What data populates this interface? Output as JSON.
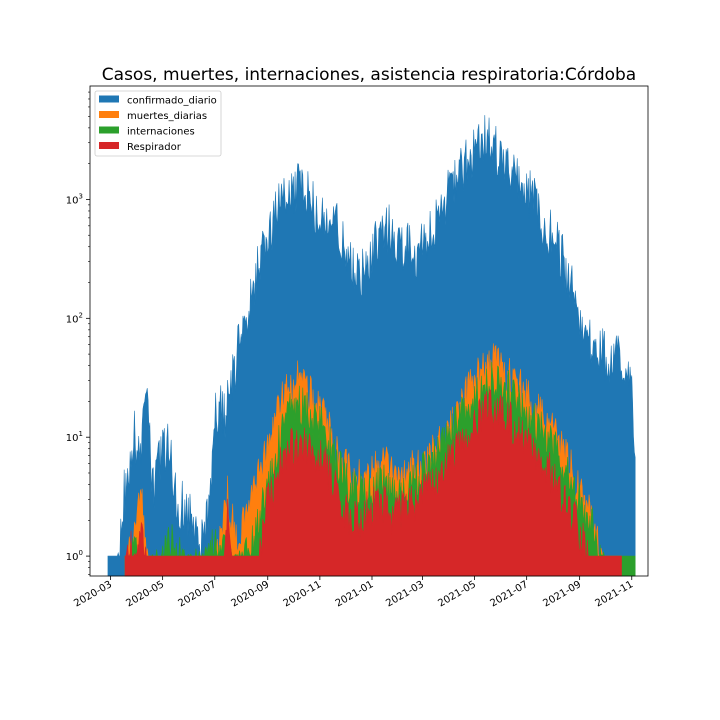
{
  "chart_data": {
    "type": "area",
    "title": "Casos, muertes, internaciones, asistencia respiratoria:Córdoba",
    "xlabel": "",
    "ylabel": "",
    "yscale": "log",
    "ylim": [
      0.68,
      9000
    ],
    "xlim": [
      "2020-02-06",
      "2021-11-20"
    ],
    "grid": false,
    "legend_position": "top-left",
    "x_ticks": [
      "2020-03",
      "2020-05",
      "2020-07",
      "2020-09",
      "2020-11",
      "2021-01",
      "2021-03",
      "2021-05",
      "2021-07",
      "2021-09",
      "2021-11"
    ],
    "y_ticks": [
      {
        "value": 1,
        "base": "10",
        "exp": "0"
      },
      {
        "value": 10,
        "base": "10",
        "exp": "1"
      },
      {
        "value": 100,
        "base": "10",
        "exp": "2"
      },
      {
        "value": 1000,
        "base": "10",
        "exp": "3"
      }
    ],
    "series": [
      {
        "name": "confirmado_diario",
        "color": "#1f77b4",
        "points": [
          [
            "2020-02-27",
            1
          ],
          [
            "2020-03-08",
            1
          ],
          [
            "2020-03-15",
            5
          ],
          [
            "2020-03-22",
            9
          ],
          [
            "2020-03-28",
            18
          ],
          [
            "2020-04-05",
            12
          ],
          [
            "2020-04-12",
            36
          ],
          [
            "2020-04-20",
            6
          ],
          [
            "2020-04-28",
            12
          ],
          [
            "2020-05-08",
            14
          ],
          [
            "2020-05-18",
            5
          ],
          [
            "2020-05-28",
            4
          ],
          [
            "2020-06-06",
            3
          ],
          [
            "2020-06-14",
            2
          ],
          [
            "2020-06-24",
            4
          ],
          [
            "2020-07-03",
            30
          ],
          [
            "2020-07-13",
            25
          ],
          [
            "2020-07-24",
            60
          ],
          [
            "2020-08-03",
            150
          ],
          [
            "2020-08-13",
            280
          ],
          [
            "2020-08-24",
            500
          ],
          [
            "2020-09-05",
            1000
          ],
          [
            "2020-09-15",
            1700
          ],
          [
            "2020-09-25",
            2000
          ],
          [
            "2020-10-05",
            2000
          ],
          [
            "2020-10-15",
            2100
          ],
          [
            "2020-10-24",
            1500
          ],
          [
            "2020-11-03",
            1300
          ],
          [
            "2020-11-12",
            1200
          ],
          [
            "2020-11-23",
            900
          ],
          [
            "2020-12-03",
            600
          ],
          [
            "2020-12-13",
            400
          ],
          [
            "2020-12-24",
            400
          ],
          [
            "2021-01-03",
            600
          ],
          [
            "2021-01-13",
            1000
          ],
          [
            "2021-01-23",
            900
          ],
          [
            "2021-02-02",
            700
          ],
          [
            "2021-02-12",
            700
          ],
          [
            "2021-02-22",
            600
          ],
          [
            "2021-03-04",
            700
          ],
          [
            "2021-03-14",
            900
          ],
          [
            "2021-03-24",
            1400
          ],
          [
            "2021-04-03",
            2000
          ],
          [
            "2021-04-13",
            2800
          ],
          [
            "2021-04-23",
            3500
          ],
          [
            "2021-05-03",
            4300
          ],
          [
            "2021-05-13",
            5200
          ],
          [
            "2021-05-23",
            4700
          ],
          [
            "2021-06-02",
            3500
          ],
          [
            "2021-06-12",
            2700
          ],
          [
            "2021-06-22",
            2500
          ],
          [
            "2021-07-02",
            2000
          ],
          [
            "2021-07-12",
            1500
          ],
          [
            "2021-07-22",
            1000
          ],
          [
            "2021-08-01",
            800
          ],
          [
            "2021-08-11",
            550
          ],
          [
            "2021-08-21",
            320
          ],
          [
            "2021-08-31",
            180
          ],
          [
            "2021-09-10",
            110
          ],
          [
            "2021-09-20",
            95
          ],
          [
            "2021-09-30",
            80
          ],
          [
            "2021-10-10",
            70
          ],
          [
            "2021-10-20",
            75
          ],
          [
            "2021-10-30",
            65
          ],
          [
            "2021-11-05",
            14
          ]
        ]
      },
      {
        "name": "muertes_diarias",
        "color": "#ff7f0e",
        "points": [
          [
            "2020-03-18",
            1
          ],
          [
            "2020-03-26",
            2
          ],
          [
            "2020-04-06",
            5
          ],
          [
            "2020-04-14",
            1
          ],
          [
            "2020-04-24",
            1
          ],
          [
            "2020-05-15",
            1
          ],
          [
            "2020-06-20",
            1
          ],
          [
            "2020-07-08",
            2
          ],
          [
            "2020-07-16",
            5
          ],
          [
            "2020-07-26",
            2
          ],
          [
            "2020-08-06",
            3
          ],
          [
            "2020-08-16",
            5
          ],
          [
            "2020-08-26",
            9
          ],
          [
            "2020-09-05",
            18
          ],
          [
            "2020-09-15",
            30
          ],
          [
            "2020-09-25",
            40
          ],
          [
            "2020-10-05",
            45
          ],
          [
            "2020-10-15",
            38
          ],
          [
            "2020-10-25",
            32
          ],
          [
            "2020-11-04",
            25
          ],
          [
            "2020-11-14",
            15
          ],
          [
            "2020-11-24",
            9
          ],
          [
            "2020-12-04",
            8
          ],
          [
            "2020-12-14",
            7
          ],
          [
            "2020-12-24",
            6
          ],
          [
            "2021-01-04",
            8
          ],
          [
            "2021-01-14",
            9
          ],
          [
            "2021-01-24",
            8
          ],
          [
            "2021-02-04",
            7
          ],
          [
            "2021-02-14",
            8
          ],
          [
            "2021-02-24",
            9
          ],
          [
            "2021-03-06",
            10
          ],
          [
            "2021-03-16",
            12
          ],
          [
            "2021-03-26",
            15
          ],
          [
            "2021-04-05",
            20
          ],
          [
            "2021-04-15",
            28
          ],
          [
            "2021-04-25",
            38
          ],
          [
            "2021-05-05",
            48
          ],
          [
            "2021-05-15",
            60
          ],
          [
            "2021-05-25",
            65
          ],
          [
            "2021-06-04",
            55
          ],
          [
            "2021-06-14",
            45
          ],
          [
            "2021-06-24",
            38
          ],
          [
            "2021-07-04",
            30
          ],
          [
            "2021-07-14",
            25
          ],
          [
            "2021-07-24",
            20
          ],
          [
            "2021-08-03",
            17
          ],
          [
            "2021-08-13",
            12
          ],
          [
            "2021-08-23",
            8
          ],
          [
            "2021-09-02",
            5
          ],
          [
            "2021-09-12",
            4
          ],
          [
            "2021-09-22",
            2
          ],
          [
            "2021-10-02",
            1
          ],
          [
            "2021-10-20",
            1
          ]
        ]
      },
      {
        "name": "internaciones",
        "color": "#2ca02c",
        "points": [
          [
            "2020-03-18",
            1
          ],
          [
            "2020-03-28",
            2
          ],
          [
            "2020-04-08",
            1
          ],
          [
            "2020-04-18",
            1
          ],
          [
            "2020-05-12",
            2
          ],
          [
            "2020-06-01",
            1
          ],
          [
            "2020-07-06",
            2
          ],
          [
            "2020-07-26",
            1
          ],
          [
            "2020-08-16",
            2
          ],
          [
            "2020-08-26",
            4
          ],
          [
            "2020-09-05",
            8
          ],
          [
            "2020-09-15",
            15
          ],
          [
            "2020-09-25",
            25
          ],
          [
            "2020-10-05",
            30
          ],
          [
            "2020-10-15",
            25
          ],
          [
            "2020-10-25",
            22
          ],
          [
            "2020-11-04",
            20
          ],
          [
            "2020-11-14",
            12
          ],
          [
            "2020-11-24",
            8
          ],
          [
            "2020-12-04",
            6
          ],
          [
            "2020-12-14",
            5
          ],
          [
            "2020-12-24",
            5
          ],
          [
            "2021-01-04",
            6
          ],
          [
            "2021-01-14",
            6
          ],
          [
            "2021-01-24",
            5
          ],
          [
            "2021-02-04",
            5
          ],
          [
            "2021-02-14",
            6
          ],
          [
            "2021-02-24",
            7
          ],
          [
            "2021-03-06",
            8
          ],
          [
            "2021-03-16",
            10
          ],
          [
            "2021-03-26",
            13
          ],
          [
            "2021-04-05",
            18
          ],
          [
            "2021-04-15",
            22
          ],
          [
            "2021-04-25",
            28
          ],
          [
            "2021-05-05",
            33
          ],
          [
            "2021-05-15",
            40
          ],
          [
            "2021-05-25",
            45
          ],
          [
            "2021-06-04",
            40
          ],
          [
            "2021-06-14",
            35
          ],
          [
            "2021-06-24",
            28
          ],
          [
            "2021-07-04",
            22
          ],
          [
            "2021-07-14",
            18
          ],
          [
            "2021-07-24",
            15
          ],
          [
            "2021-08-03",
            12
          ],
          [
            "2021-08-13",
            9
          ],
          [
            "2021-08-23",
            6
          ],
          [
            "2021-09-02",
            4
          ],
          [
            "2021-09-12",
            3
          ],
          [
            "2021-09-22",
            2
          ],
          [
            "2021-10-02",
            1
          ],
          [
            "2021-11-05",
            1
          ]
        ]
      },
      {
        "name": "Respirador",
        "color": "#d62728",
        "points": [
          [
            "2020-03-18",
            1
          ],
          [
            "2020-03-24",
            2
          ],
          [
            "2020-03-30",
            1
          ],
          [
            "2020-04-06",
            2
          ],
          [
            "2020-04-18",
            1
          ],
          [
            "2020-07-10",
            1
          ],
          [
            "2020-07-16",
            4
          ],
          [
            "2020-07-24",
            1
          ],
          [
            "2020-08-20",
            1
          ],
          [
            "2020-08-30",
            4
          ],
          [
            "2020-09-08",
            6
          ],
          [
            "2020-09-18",
            9
          ],
          [
            "2020-09-28",
            12
          ],
          [
            "2020-10-08",
            14
          ],
          [
            "2020-10-18",
            12
          ],
          [
            "2020-10-28",
            10
          ],
          [
            "2020-11-07",
            9
          ],
          [
            "2020-11-17",
            6
          ],
          [
            "2020-11-27",
            4
          ],
          [
            "2020-12-07",
            3
          ],
          [
            "2020-12-17",
            3
          ],
          [
            "2020-12-27",
            4
          ],
          [
            "2021-01-07",
            4
          ],
          [
            "2021-01-17",
            4
          ],
          [
            "2021-01-27",
            3
          ],
          [
            "2021-02-07",
            4
          ],
          [
            "2021-02-17",
            4
          ],
          [
            "2021-02-27",
            5
          ],
          [
            "2021-03-09",
            6
          ],
          [
            "2021-03-19",
            7
          ],
          [
            "2021-03-29",
            9
          ],
          [
            "2021-04-08",
            11
          ],
          [
            "2021-04-18",
            14
          ],
          [
            "2021-04-28",
            18
          ],
          [
            "2021-05-08",
            22
          ],
          [
            "2021-05-18",
            26
          ],
          [
            "2021-05-28",
            25
          ],
          [
            "2021-06-07",
            22
          ],
          [
            "2021-06-17",
            18
          ],
          [
            "2021-06-27",
            15
          ],
          [
            "2021-07-07",
            12
          ],
          [
            "2021-07-17",
            9
          ],
          [
            "2021-07-27",
            8
          ],
          [
            "2021-08-06",
            6
          ],
          [
            "2021-08-16",
            4
          ],
          [
            "2021-08-26",
            3
          ],
          [
            "2021-09-05",
            2
          ],
          [
            "2021-09-15",
            1
          ],
          [
            "2021-10-20",
            1
          ]
        ]
      }
    ]
  }
}
